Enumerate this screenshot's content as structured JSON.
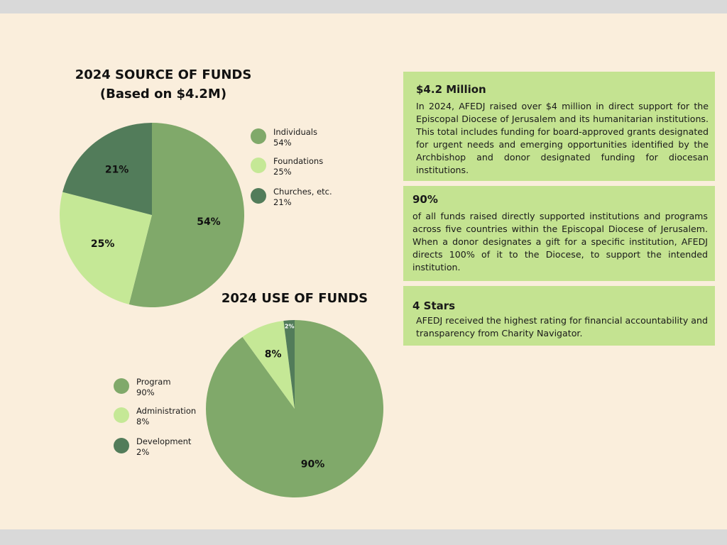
{
  "colors": {
    "background": "#FAEEDC",
    "band": "#D9D9D9",
    "card": "#C4E391",
    "individuals_program": "#80A96A",
    "foundations_administration": "#C5E896",
    "churches_development": "#527C5A"
  },
  "chart_data": [
    {
      "type": "pie",
      "title": "2024 SOURCE OF FUNDS",
      "subtitle": "(Based on $4.2M)",
      "slices": [
        {
          "label": "Individuals",
          "value": 54,
          "value_label": "54%",
          "color": "#80A96A"
        },
        {
          "label": "Foundations",
          "value": 25,
          "value_label": "25%",
          "color": "#C5E896"
        },
        {
          "label": "Churches, etc.",
          "value": 21,
          "value_label": "21%",
          "color": "#527C5A"
        }
      ],
      "legend_position": "right"
    },
    {
      "type": "pie",
      "title": "2024 USE OF FUNDS",
      "slices": [
        {
          "label": "Program",
          "value": 90,
          "value_label": "90%",
          "color": "#80A96A"
        },
        {
          "label": "Administration",
          "value": 8,
          "value_label": "8%",
          "color": "#C5E896"
        },
        {
          "label": "Development",
          "value": 2,
          "value_label": "2%",
          "color": "#527C5A"
        }
      ],
      "legend_position": "left"
    }
  ],
  "cards": [
    {
      "heading": "$4.2 Million",
      "body": "In 2024, AFEDJ raised over $4 million in direct support for the Episcopal Diocese of Jerusalem and its humanitarian institutions. This total includes funding for board-approved grants designated for urgent needs and emerging opportunities identified by the Archbishop and donor designated funding for diocesan institutions."
    },
    {
      "heading": "90%",
      "body": "of all funds raised directly supported institutions and programs across five countries within the Episcopal Diocese of Jerusalem. When a donor designates a gift for a specific institution, AFEDJ directs 100% of it to the Diocese, to support the intended institution."
    },
    {
      "heading": "4 Stars",
      "body": "AFEDJ received the highest rating for financial accountability and transparency from Charity Navigator."
    }
  ]
}
